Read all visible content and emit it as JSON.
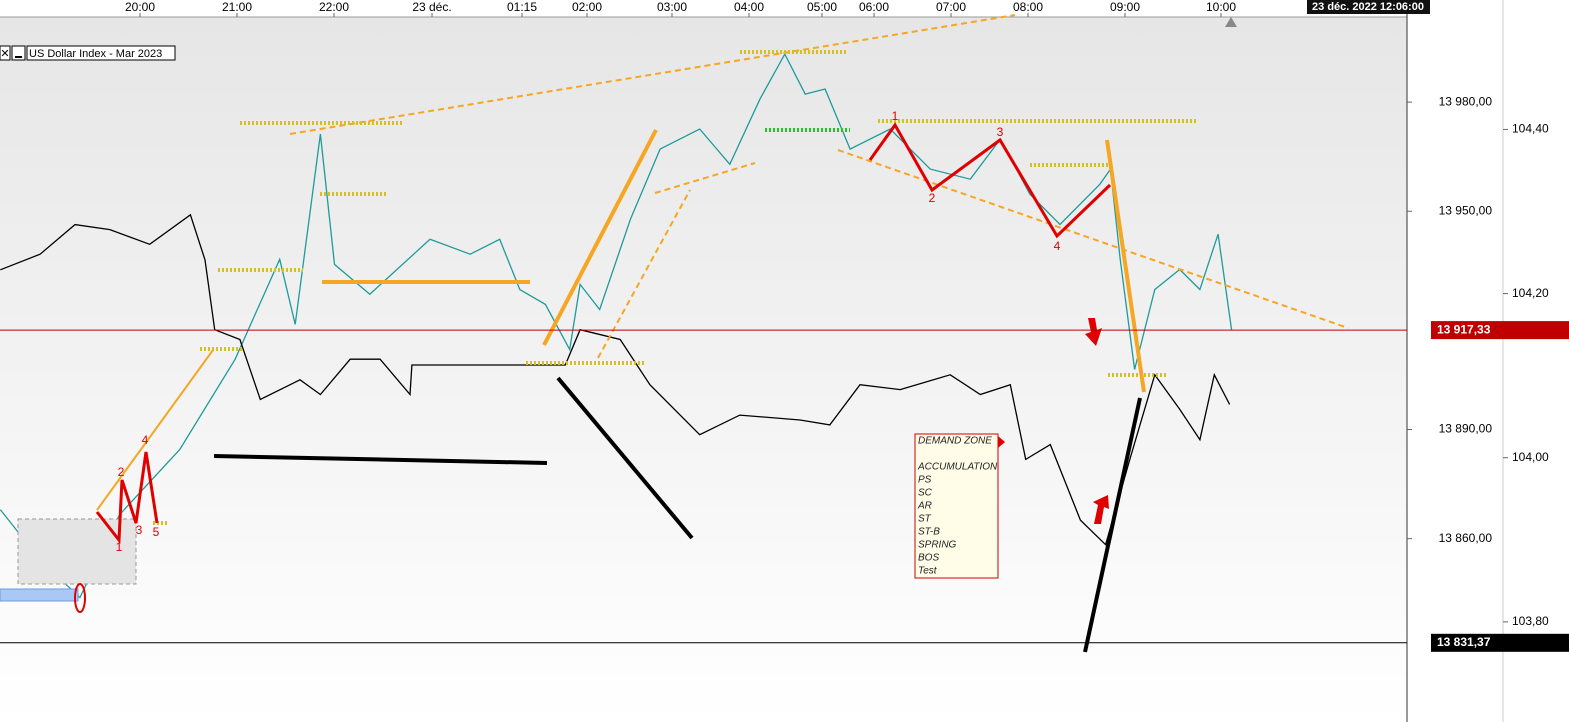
{
  "chart_data": {
    "type": "line",
    "title": "US Dollar Index - Mar 2023",
    "timestamp": "23 déc. 2022 12:06:00",
    "xlim": [
      18.56,
      35.9
    ],
    "xticks": [
      {
        "value": 20,
        "label": "20:00"
      },
      {
        "value": 21,
        "label": "21:00"
      },
      {
        "value": 22,
        "label": "22:00"
      },
      {
        "value": 24,
        "label": "23 déc."
      },
      {
        "value": 25.25,
        "label": "01:15"
      },
      {
        "value": 26,
        "label": "02:00"
      },
      {
        "value": 27,
        "label": "03:00"
      },
      {
        "value": 28,
        "label": "04:00"
      },
      {
        "value": 29,
        "label": "05:00"
      },
      {
        "value": 30,
        "label": "06:00"
      },
      {
        "value": 31,
        "label": "07:00"
      },
      {
        "value": 32,
        "label": "08:00"
      },
      {
        "value": 33,
        "label": "09:00"
      },
      {
        "value": 34,
        "label": "10:00"
      }
    ],
    "ylim": [
      13809.6,
      14003.4
    ],
    "yticks": [
      {
        "value": 13980,
        "label": "13 980,00"
      },
      {
        "value": 13950,
        "label": "13 950,00"
      },
      {
        "value": 13890,
        "label": "13 890,00"
      },
      {
        "value": 13860,
        "label": "13 860,00"
      }
    ],
    "y2lim": [
      103.678,
      104.537
    ],
    "y2ticks": [
      {
        "value": 104.4,
        "label": "104,40"
      },
      {
        "value": 104.2,
        "label": "104,20"
      },
      {
        "value": 104,
        "label": "104,00"
      },
      {
        "value": 103.8,
        "label": "103,80"
      }
    ],
    "series": [
      {
        "color": "#1f9a9a",
        "x": [
          18.56,
          18.97,
          19.38,
          19.79,
          20.41,
          20.98,
          21.44,
          21.6,
          21.86,
          22.01,
          22.73,
          23.96,
          24.53,
          24.94,
          25.22,
          25.52,
          25.8,
          25.92,
          26.15,
          26.51,
          26.86,
          27.36,
          27.75,
          28.15,
          28.49,
          28.77,
          29.06,
          29.54,
          30.21,
          30.73,
          31.25,
          31.64,
          32.02,
          32.33,
          32.74,
          32.85,
          32.95,
          33.1,
          33.31,
          33.57,
          33.78,
          33.97,
          34.11
        ],
        "values": [
          13868.0,
          13854.2,
          13843.8,
          13866.6,
          13884.5,
          13909.3,
          13936.8,
          13918.9,
          13971.2,
          13935.4,
          13927.2,
          13942.3,
          13938.2,
          13942.3,
          13928.5,
          13924.4,
          13912.0,
          13929.9,
          13923.0,
          13947.8,
          13967.1,
          13972.6,
          13962.9,
          13980.8,
          13993.2,
          13982.2,
          13983.6,
          13967.1,
          13972.6,
          13961.6,
          13958.8,
          13969.8,
          13954.7,
          13946.4,
          13957.4,
          13961.6,
          13936.8,
          13906.5,
          13928.5,
          13934.0,
          13928.5,
          13943.7,
          13917.33
        ]
      },
      {
        "color": "#000000",
        "axis": "y2",
        "x": [
          18.56,
          18.97,
          19.33,
          19.69,
          20.1,
          20.52,
          20.67,
          20.77,
          21.03,
          21.24,
          21.65,
          21.86,
          22.33,
          22.94,
          23.55,
          23.59,
          25.75,
          25.92,
          26.39,
          26.74,
          27.36,
          27.88,
          28.7,
          29.15,
          29.73,
          30.34,
          30.99,
          31.38,
          31.77,
          31.97,
          32.23,
          32.54,
          32.8,
          33.05,
          33.31,
          33.57,
          33.78,
          33.93,
          34.09
        ],
        "values": [
          104.229,
          104.248,
          104.284,
          104.278,
          104.26,
          104.296,
          104.241,
          104.156,
          104.144,
          104.071,
          104.095,
          104.077,
          104.12,
          104.12,
          104.077,
          104.113,
          104.113,
          104.156,
          104.144,
          104.089,
          104.028,
          104.052,
          104.046,
          104.04,
          104.089,
          104.083,
          104.101,
          104.077,
          104.089,
          103.998,
          104.016,
          103.924,
          103.894,
          103.998,
          104.101,
          104.059,
          104.022,
          104.101,
          104.065
        ]
      }
    ],
    "reference_lines": [
      {
        "value": 13917.33,
        "label": "13 917,33",
        "color": "#c00000"
      },
      {
        "value": 13831.37,
        "label": "13 831,37",
        "color": "#000000"
      }
    ],
    "wave_labels": [
      "2",
      "4",
      "1",
      "3",
      "5",
      "1",
      "2",
      "3",
      "4"
    ],
    "note_lines": [
      "DEMAND ZONE",
      "ACCUMULATION",
      "PS",
      "SC",
      "AR",
      "ST",
      "ST-B",
      "SPRING",
      "BOS",
      "Test"
    ]
  }
}
